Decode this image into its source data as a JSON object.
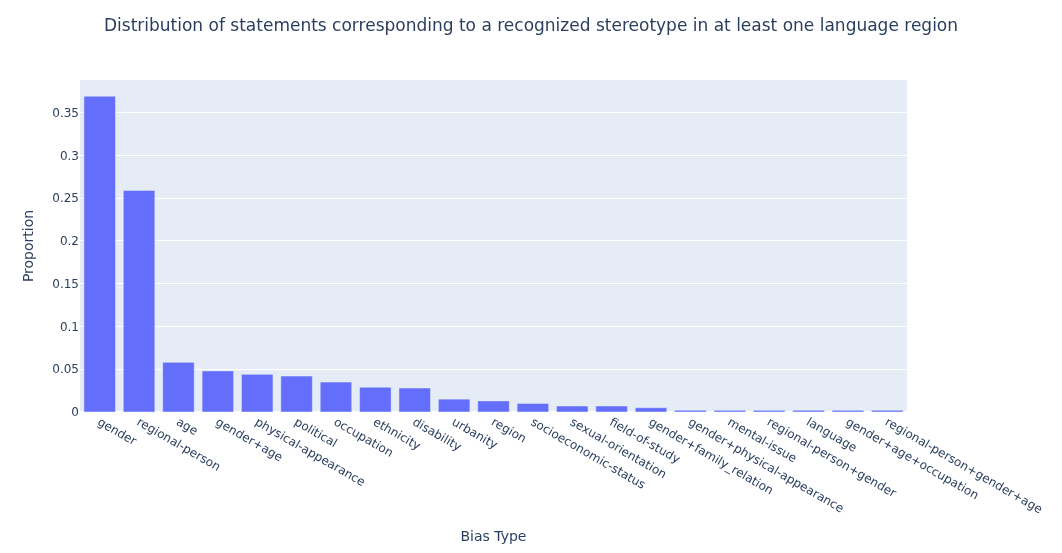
{
  "chart_data": {
    "type": "bar",
    "title": "Distribution of statements corresponding to a recognized stereotype in at least one language region",
    "xlabel": "Bias Type",
    "ylabel": "Proportion",
    "categories": [
      "gender",
      "regional-person",
      "age",
      "gender+age",
      "physical-appearance",
      "political",
      "occupation",
      "ethnicity",
      "disability",
      "urbanity",
      "region",
      "socioeconomic-status",
      "sexual-orientation",
      "field-of-study",
      "gender+family_relation",
      "gender+physical-appearance",
      "mental-issue",
      "regional-person+gender",
      "language",
      "gender+age+occupation",
      "regional-person+gender+age"
    ],
    "values": [
      0.369,
      0.259,
      0.058,
      0.048,
      0.044,
      0.042,
      0.035,
      0.029,
      0.028,
      0.015,
      0.013,
      0.01,
      0.007,
      0.007,
      0.005,
      0.002,
      0.002,
      0.002,
      0.002,
      0.002,
      0.002
    ],
    "color": "#636efa",
    "ylim": [
      0,
      0.388
    ],
    "yticks": [
      0,
      0.05,
      0.1,
      0.15,
      0.2,
      0.25,
      0.3,
      0.35
    ],
    "grid": "y",
    "legend": false
  }
}
